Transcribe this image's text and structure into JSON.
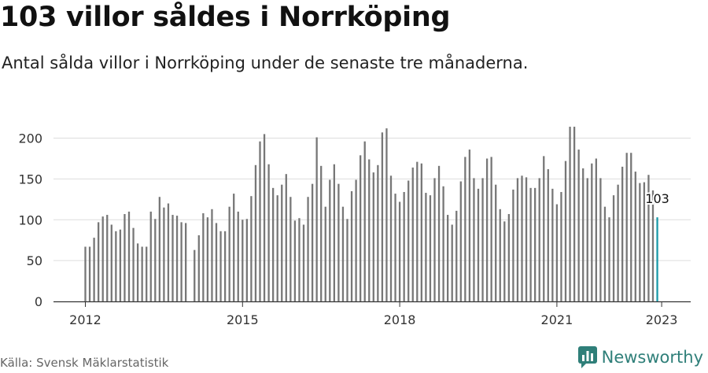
{
  "header": {
    "title": "103 villor såldes i Norrköping",
    "subtitle": "Antal sålda villor i Norrköping under de senaste tre månaderna."
  },
  "footer": {
    "source": "Källa: Svensk Mäklarstatistik",
    "brand": "Newsworthy"
  },
  "colors": {
    "bar": "#777777",
    "highlight": "#1a9aa8",
    "grid": "#dddddd",
    "axis": "#333333",
    "brand": "#2f7f79"
  },
  "icons": {
    "brand_logo": "bar-chart-logo-icon"
  },
  "chart_data": {
    "type": "bar",
    "title": "103 villor såldes i Norrköping",
    "xlabel": "",
    "ylabel": "",
    "ylim": [
      0,
      215
    ],
    "yticks": [
      0,
      50,
      100,
      150,
      200
    ],
    "xticks": [
      "2012",
      "2015",
      "2018",
      "2021",
      "2023"
    ],
    "grid": true,
    "highlight_label": "103",
    "series": [
      {
        "values": [
          67,
          67,
          78,
          97,
          104,
          106,
          94,
          86,
          88,
          107,
          110,
          90,
          71,
          67,
          67,
          110,
          101,
          128,
          115,
          120,
          106,
          105,
          97,
          96,
          null,
          63,
          81,
          108,
          103,
          113,
          96,
          86,
          86,
          116,
          132,
          110,
          100,
          101,
          129,
          167,
          196,
          205,
          168,
          139,
          130,
          143,
          156,
          128,
          99,
          102,
          94,
          128,
          144,
          201,
          166,
          116,
          149,
          168,
          144,
          116,
          101,
          135,
          149,
          179,
          196,
          174,
          158,
          167,
          207,
          212,
          154,
          132,
          122,
          134,
          148,
          164,
          171,
          169,
          133,
          130,
          151,
          166,
          141,
          106,
          94,
          111,
          147,
          177,
          186,
          151,
          138,
          151,
          175,
          177,
          143,
          113,
          98,
          107,
          137,
          151,
          154,
          152,
          139,
          139,
          151,
          178,
          162,
          138,
          119,
          134,
          172,
          214,
          214,
          186,
          163,
          151,
          169,
          175,
          151,
          116,
          103,
          130,
          143,
          165,
          182,
          182,
          159,
          145,
          146,
          155,
          136,
          103
        ]
      }
    ]
  }
}
